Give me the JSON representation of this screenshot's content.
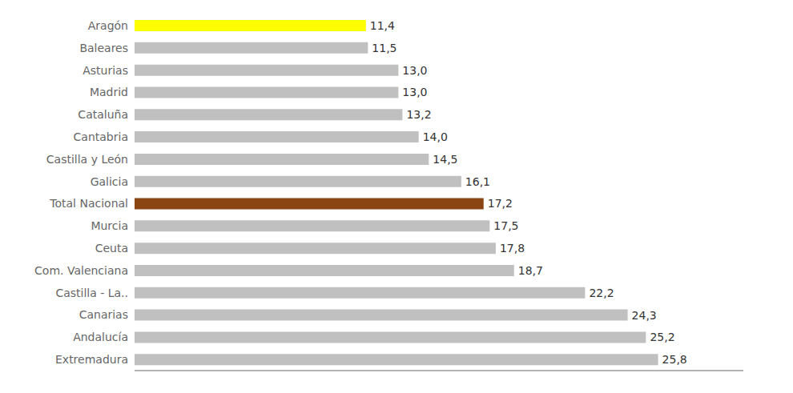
{
  "chart_data": {
    "type": "bar",
    "orientation": "horizontal",
    "categories": [
      "Extremadura",
      "Andalucía",
      "Canarias",
      "Castilla - La..",
      "Com. Valenciana",
      "Ceuta",
      "Murcia",
      "Total Nacional",
      "Galicia",
      "Castilla y León",
      "Cantabria",
      "Cataluña",
      "Madrid",
      "Asturias",
      "Baleares",
      "Aragón"
    ],
    "values": [
      25.8,
      25.2,
      24.3,
      22.2,
      18.7,
      17.8,
      17.5,
      17.2,
      16.1,
      14.5,
      14.0,
      13.2,
      13.0,
      13.0,
      11.5,
      11.4
    ],
    "value_labels": [
      "25,8",
      "25,2",
      "24,3",
      "22,2",
      "18,7",
      "17,8",
      "17,5",
      "17,2",
      "16,1",
      "14,5",
      "14,0",
      "13,2",
      "13,0",
      "13,0",
      "11,5",
      "11,4"
    ],
    "colors": [
      "#c0c0c0",
      "#c0c0c0",
      "#c0c0c0",
      "#c0c0c0",
      "#c0c0c0",
      "#c0c0c0",
      "#c0c0c0",
      "#8B4513",
      "#c0c0c0",
      "#c0c0c0",
      "#c0c0c0",
      "#c0c0c0",
      "#c0c0c0",
      "#c0c0c0",
      "#c0c0c0",
      "#ffff00"
    ],
    "xlim": [
      0,
      30
    ],
    "data_labels": true,
    "tick_labels": "y",
    "grid": false
  }
}
